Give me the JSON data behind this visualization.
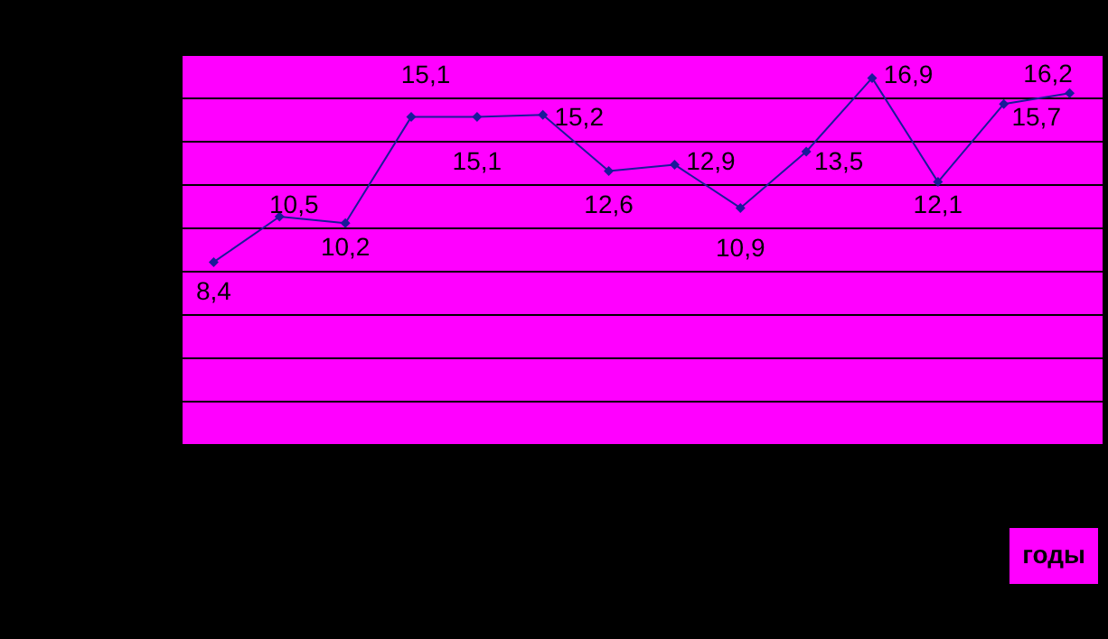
{
  "chart_data": {
    "type": "line",
    "annotations": [
      "годы"
    ],
    "categories": [
      null,
      null,
      null,
      null,
      null,
      null,
      null,
      null,
      null,
      null,
      null,
      null,
      null,
      null
    ],
    "series": [
      {
        "color": "#1a1a99",
        "values": [
          8.4,
          10.5,
          10.2,
          15.1,
          15.1,
          15.2,
          12.6,
          12.9,
          10.9,
          13.5,
          16.9,
          12.1,
          15.7,
          16.2
        ],
        "value_labels": [
          "8,4",
          "10,5",
          "10,2",
          "15,1",
          "15,1",
          "15,2",
          "12,6",
          "12,9",
          "10,9",
          "13,5",
          "16,9",
          "12,1",
          "15,7",
          "16,2"
        ]
      }
    ],
    "grid": "y",
    "tick_labels": false,
    "marker": "diamond",
    "line_style": "solid"
  }
}
